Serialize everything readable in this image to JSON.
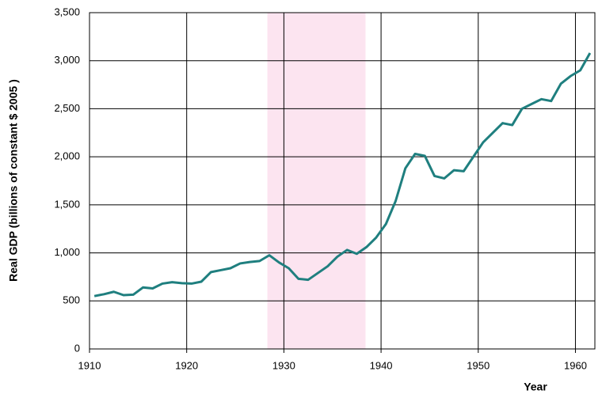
{
  "chart_data": {
    "type": "line",
    "x_label": "Year",
    "y_label": "Real GDP (billions of constant $ 2005 )",
    "shaded_region": [
      1928.3,
      1938.4
    ],
    "shade_color": "#fce4f0",
    "x": [
      1910.5,
      1911.5,
      1912.5,
      1913.5,
      1914.5,
      1915.5,
      1916.5,
      1917.5,
      1918.5,
      1919.5,
      1920.5,
      1921.5,
      1922.5,
      1923.5,
      1924.5,
      1925.5,
      1926.5,
      1927.5,
      1928.5,
      1929.5,
      1930.5,
      1931.5,
      1932.5,
      1933.5,
      1934.5,
      1935.5,
      1936.5,
      1937.5,
      1938.5,
      1939.5,
      1940.5,
      1941.5,
      1942.5,
      1943.5,
      1944.5,
      1945.5,
      1946.5,
      1947.5,
      1948.5,
      1949.5,
      1950.5,
      1951.5,
      1952.5,
      1953.5,
      1954.5,
      1955.5,
      1956.5,
      1957.5,
      1958.5,
      1959.5,
      1960.5,
      1961.5
    ],
    "series": [
      {
        "color": "#1f7f7f",
        "values": [
          550,
          570,
          595,
          560,
          565,
          640,
          630,
          680,
          695,
          685,
          680,
          700,
          800,
          820,
          840,
          890,
          905,
          915,
          975,
          900,
          840,
          730,
          720,
          790,
          860,
          960,
          1030,
          990,
          1060,
          1160,
          1300,
          1540,
          1880,
          2030,
          2010,
          1800,
          1775,
          1860,
          1850,
          2000,
          2150,
          2250,
          2350,
          2330,
          2500,
          2550,
          2600,
          2580,
          2760,
          2840,
          2900,
          3080
        ]
      }
    ],
    "xlim": [
      1910,
      1962
    ],
    "xticks": [
      1910,
      1920,
      1930,
      1940,
      1950,
      1960
    ],
    "ylim": [
      0,
      3500
    ],
    "yticks": [
      0,
      500,
      {
        "value": 1000,
        "label": "1,000"
      },
      {
        "value": 1500,
        "label": "1,500"
      },
      {
        "value": 2000,
        "label": "2,000"
      },
      {
        "value": 2500,
        "label": "2,500"
      },
      {
        "value": 3000,
        "label": "3,000"
      },
      {
        "value": 3500,
        "label": "3,500"
      }
    ],
    "grid": true
  }
}
